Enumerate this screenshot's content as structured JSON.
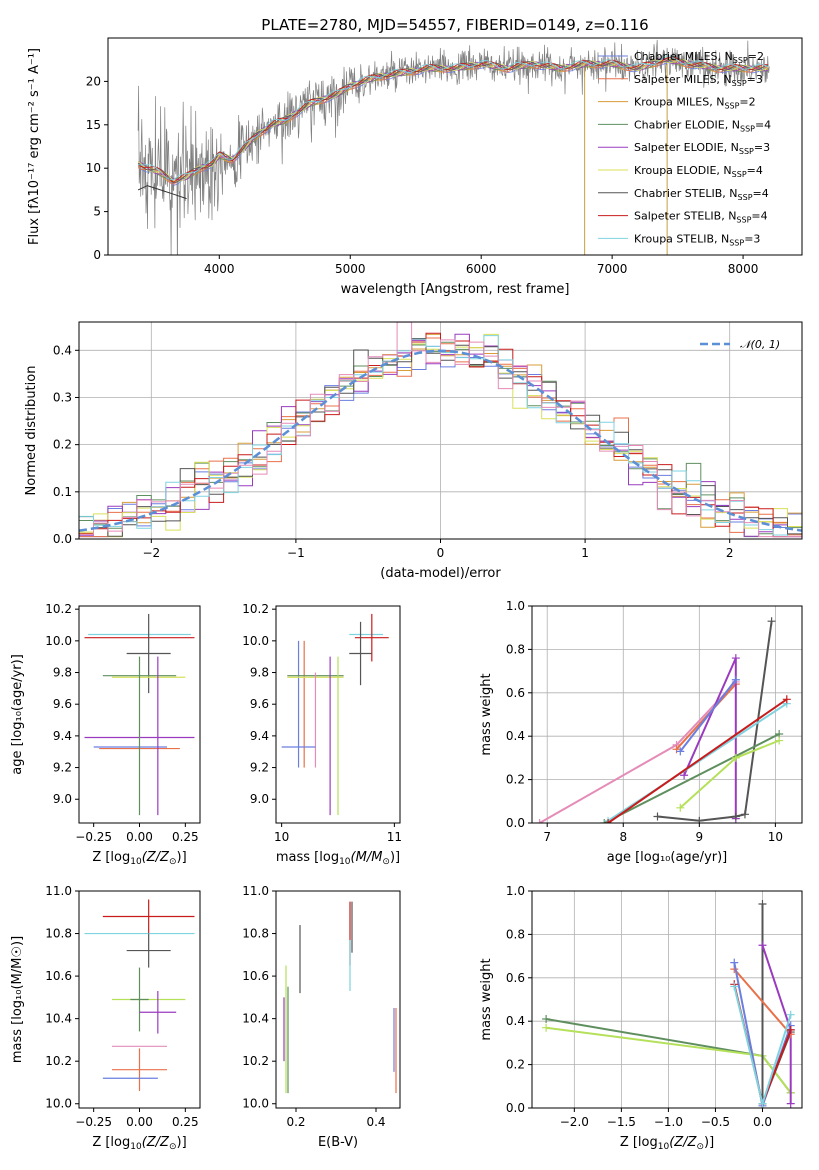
{
  "page": {
    "title": "PLATE=2780, MJD=54557, FIBERID=0149, z=0.116"
  },
  "colors": {
    "chabrier_miles": "#6a7fe0",
    "salpeter_miles": "#e8704a",
    "kroupa_miles": "#d89c3a",
    "chabrier_elodie": "#5f8f5f",
    "salpeter_elodie": "#9a3bbf",
    "kroupa_elodie": "#d8e05a",
    "chabrier_stelib": "#555555",
    "salpeter_stelib": "#c81c1c",
    "kroupa_stelib": "#7fd3e0",
    "pink": "#e58bb8",
    "lime": "#b5e05a",
    "data": "#808080",
    "gaussian": "#5b8fd6"
  },
  "chart_data": [
    {
      "id": "spectrum",
      "type": "line",
      "title": "PLATE=2780, MJD=54557, FIBERID=0149, z=0.116",
      "xlabel": "wavelength [Angstrom, rest frame]",
      "ylabel": "Flux [fλ10⁻¹⁷ erg cm⁻² s⁻¹ A⁻¹]",
      "xlim": [
        3150,
        8450
      ],
      "ylim": [
        0,
        25
      ],
      "xticks": [
        "4000",
        "5000",
        "6000",
        "7000",
        "8000"
      ],
      "yticks": [
        "0",
        "5",
        "10",
        "15",
        "20"
      ],
      "grid": false,
      "legend_position": "top-right",
      "series": [
        {
          "name": "Chabrier MILES, NSSP=2",
          "label_base": "Chabrier MILES, N",
          "label_sub": "SSP",
          "label_tail": "=2",
          "color": "#6a7fe0"
        },
        {
          "name": "Salpeter MILES, NSSP=3",
          "label_base": "Salpeter MILES, N",
          "label_sub": "SSP",
          "label_tail": "=3",
          "color": "#e8704a"
        },
        {
          "name": "Kroupa MILES, NSSP=2",
          "label_base": "Kroupa MILES, N",
          "label_sub": "SSP",
          "label_tail": "=2",
          "color": "#d89c3a"
        },
        {
          "name": "Chabrier ELODIE, NSSP=4",
          "label_base": "Chabrier ELODIE, N",
          "label_sub": "SSP",
          "label_tail": "=4",
          "color": "#5f8f5f"
        },
        {
          "name": "Salpeter ELODIE, NSSP=3",
          "label_base": "Salpeter ELODIE, N",
          "label_sub": "SSP",
          "label_tail": "=3",
          "color": "#9a3bbf"
        },
        {
          "name": "Kroupa ELODIE, NSSP=4",
          "label_base": "Kroupa ELODIE, N",
          "label_sub": "SSP",
          "label_tail": "=4",
          "color": "#d8e05a"
        },
        {
          "name": "Chabrier STELIB, NSSP=4",
          "label_base": "Chabrier STELIB, N",
          "label_sub": "SSP",
          "label_tail": "=4",
          "color": "#555555"
        },
        {
          "name": "Salpeter STELIB, NSSP=4",
          "label_base": "Salpeter STELIB, N",
          "label_sub": "SSP",
          "label_tail": "=4",
          "color": "#c81c1c"
        },
        {
          "name": "Kroupa STELIB, NSSP=3",
          "label_base": "Kroupa STELIB, N",
          "label_sub": "SSP",
          "label_tail": "=3",
          "color": "#7fd3e0"
        }
      ],
      "model_curve": {
        "x": [
          3380,
          3450,
          3550,
          3650,
          3750,
          3850,
          3950,
          4000,
          4100,
          4200,
          4300,
          4400,
          4500,
          4600,
          4700,
          4800,
          4900,
          5000,
          5200,
          5400,
          5600,
          5800,
          6000,
          6200,
          6400,
          6600,
          6800,
          7000,
          7200,
          7400,
          7600,
          7800,
          8000,
          8200
        ],
        "y": [
          10.5,
          10.0,
          9.5,
          8.5,
          9.0,
          10.0,
          10.5,
          11.5,
          11.0,
          12.5,
          14.0,
          15.0,
          15.5,
          16.5,
          17.5,
          18.0,
          18.5,
          19.5,
          20.5,
          21.0,
          21.5,
          21.5,
          22.0,
          21.5,
          22.0,
          21.5,
          22.0,
          22.0,
          21.5,
          22.5,
          22.0,
          21.5,
          21.5,
          21.5
        ]
      },
      "stelib_low_segment": {
        "x": [
          3380,
          3450,
          3550,
          3650,
          3750
        ],
        "y": [
          7.5,
          8.0,
          7.5,
          7.0,
          6.5
        ]
      }
    },
    {
      "id": "residuals",
      "type": "line",
      "xlabel": "(data-model)/error",
      "ylabel": "Normed distribution",
      "xlim": [
        -2.5,
        2.5
      ],
      "ylim": [
        0,
        0.46
      ],
      "xticks": [
        "−2",
        "−1",
        "0",
        "1",
        "2"
      ],
      "yticks": [
        "0.0",
        "0.1",
        "0.2",
        "0.3",
        "0.4"
      ],
      "grid": true,
      "legend_position": "top-right",
      "legend_label": "𝒩(0, 1)",
      "bin_width": 0.1
    },
    {
      "id": "z_age",
      "type": "scatter",
      "xlabel_prefix": "Z [log",
      "xlabel_suffix": "(Z/Z",
      "ylabel": "age  [log₁₀(age/yr)]",
      "xlim": [
        -0.33,
        0.33
      ],
      "ylim": [
        8.85,
        10.22
      ],
      "xticks": [
        "−0.25",
        "0.00",
        "0.25"
      ],
      "yticks": [
        "9.0",
        "9.2",
        "9.4",
        "9.6",
        "9.8",
        "10.0",
        "10.2"
      ],
      "grid": false,
      "points": [
        {
          "x": 0.0,
          "y": 10.04,
          "xerr": 0.28,
          "yerr": 0.0,
          "color": "#7fd3e0"
        },
        {
          "x": 0.0,
          "y": 10.02,
          "xerr": 0.3,
          "yerr": 0.0,
          "color": "#c81c1c"
        },
        {
          "x": 0.05,
          "y": 9.92,
          "xerr": 0.12,
          "yerr": 0.25,
          "color": "#555555"
        },
        {
          "x": 0.0,
          "y": 9.78,
          "xerr": 0.2,
          "yerr": 0.0,
          "color": "#5f8f5f"
        },
        {
          "x": 0.05,
          "y": 9.77,
          "xerr": 0.2,
          "yerr": 0.0,
          "color": "#d8e05a"
        },
        {
          "x": 0.0,
          "y": 9.39,
          "xerr": 0.3,
          "yerr": 0.0,
          "color": "#9a3bbf"
        },
        {
          "x": 0.1,
          "y": 9.39,
          "xerr": 0.0,
          "yerr": 0.0,
          "color": "#9a3bbf"
        },
        {
          "x": -0.05,
          "y": 9.33,
          "xerr": 0.2,
          "yerr": 0.0,
          "color": "#6a7fe0"
        },
        {
          "x": 0.0,
          "y": 9.32,
          "xerr": 0.22,
          "yerr": 0.0,
          "color": "#e8704a"
        },
        {
          "x": 0.0,
          "y": 9.4,
          "xerr": 0.0,
          "yerr": 0.5,
          "color": "#5f8f5f"
        },
        {
          "x": 0.1,
          "y": 9.4,
          "xerr": 0.0,
          "yerr": 0.5,
          "color": "#9a3bbf"
        }
      ]
    },
    {
      "id": "mass_age",
      "type": "scatter",
      "xlabel_prefix": "mass [log",
      "xlabel_suffix": "(M/M",
      "xlim": [
        9.95,
        11.05
      ],
      "ylim": [
        8.85,
        10.22
      ],
      "xticks": [
        "10",
        "11"
      ],
      "yticks": [
        "9.0",
        "9.2",
        "9.4",
        "9.6",
        "9.8",
        "10.0",
        "10.2"
      ],
      "grid": false,
      "points": [
        {
          "x": 10.75,
          "y": 10.04,
          "xerr": 0.15,
          "yerr": 0.0,
          "color": "#7fd3e0"
        },
        {
          "x": 10.8,
          "y": 10.02,
          "xerr": 0.15,
          "yerr": 0.15,
          "color": "#c81c1c"
        },
        {
          "x": 10.7,
          "y": 9.92,
          "xerr": 0.1,
          "yerr": 0.2,
          "color": "#555555"
        },
        {
          "x": 10.15,
          "y": 9.6,
          "xerr": 0.0,
          "yerr": 0.4,
          "color": "#6a7fe0"
        },
        {
          "x": 10.2,
          "y": 9.6,
          "xerr": 0.0,
          "yerr": 0.4,
          "color": "#e8704a"
        },
        {
          "x": 10.3,
          "y": 9.78,
          "xerr": 0.25,
          "yerr": 0.0,
          "color": "#5f8f5f"
        },
        {
          "x": 10.3,
          "y": 9.77,
          "xerr": 0.25,
          "yerr": 0.0,
          "color": "#d8e05a"
        },
        {
          "x": 10.5,
          "y": 9.4,
          "xerr": 0.0,
          "yerr": 0.5,
          "color": "#b5e05a"
        },
        {
          "x": 10.43,
          "y": 9.4,
          "xerr": 0.0,
          "yerr": 0.5,
          "color": "#9a3bbf"
        },
        {
          "x": 10.3,
          "y": 9.5,
          "xerr": 0.0,
          "yerr": 0.3,
          "color": "#e58bb8"
        },
        {
          "x": 10.15,
          "y": 9.33,
          "xerr": 0.15,
          "yerr": 0.0,
          "color": "#6a7fe0"
        }
      ]
    },
    {
      "id": "age_weight",
      "type": "line",
      "xlabel": "age  [log₁₀(age/yr)]",
      "ylabel": "mass weight",
      "xlim": [
        6.8,
        10.35
      ],
      "ylim": [
        0,
        1
      ],
      "xticks": [
        "7",
        "8",
        "9",
        "10"
      ],
      "yticks": [
        "0.0",
        "0.2",
        "0.4",
        "0.6",
        "0.8",
        "1.0"
      ],
      "grid": true,
      "series": [
        {
          "color": "#e58bb8",
          "x": [
            6.9,
            8.7,
            9.48
          ],
          "y": [
            0.0,
            0.36,
            0.65
          ]
        },
        {
          "color": "#e8704a",
          "x": [
            8.7,
            9.48
          ],
          "y": [
            0.34,
            0.64
          ]
        },
        {
          "color": "#9a3bbf",
          "x": [
            8.8,
            9.48,
            9.48
          ],
          "y": [
            0.22,
            0.76,
            0.02
          ]
        },
        {
          "color": "#555555",
          "x": [
            8.45,
            9.0,
            9.48,
            9.6,
            9.95
          ],
          "y": [
            0.03,
            0.01,
            0.03,
            0.04,
            0.93
          ]
        },
        {
          "color": "#5f8f5f",
          "x": [
            7.75,
            10.05
          ],
          "y": [
            0.0,
            0.41
          ]
        },
        {
          "color": "#7fd3e0",
          "x": [
            7.8,
            10.15
          ],
          "y": [
            0.01,
            0.55
          ]
        },
        {
          "color": "#c81c1c",
          "x": [
            7.8,
            10.15
          ],
          "y": [
            0.0,
            0.57
          ]
        },
        {
          "color": "#b5e05a",
          "x": [
            8.75,
            9.48,
            10.05
          ],
          "y": [
            0.07,
            0.3,
            0.38
          ]
        },
        {
          "color": "#6a7fe0",
          "x": [
            8.75,
            9.48
          ],
          "y": [
            0.33,
            0.66
          ]
        }
      ]
    },
    {
      "id": "z_mass",
      "type": "scatter",
      "xlabel_prefix": "Z [log",
      "xlabel_suffix": "(Z/Z",
      "ylabel": "mass [log₁₀(M/M☉)]",
      "xlim": [
        -0.33,
        0.33
      ],
      "ylim": [
        9.98,
        11.0
      ],
      "xticks": [
        "−0.25",
        "0.00",
        "0.25"
      ],
      "yticks": [
        "10.0",
        "10.2",
        "10.4",
        "10.6",
        "10.8",
        "11.0"
      ],
      "grid": false,
      "points": [
        {
          "x": 0.05,
          "y": 10.88,
          "xerr": 0.25,
          "yerr": 0.08,
          "color": "#c81c1c"
        },
        {
          "x": 0.0,
          "y": 10.8,
          "xerr": 0.3,
          "yerr": 0.0,
          "color": "#7fd3e0"
        },
        {
          "x": 0.05,
          "y": 10.72,
          "xerr": 0.12,
          "yerr": 0.08,
          "color": "#555555"
        },
        {
          "x": 0.05,
          "y": 10.49,
          "xerr": 0.2,
          "yerr": 0.0,
          "color": "#b5e05a"
        },
        {
          "x": 0.0,
          "y": 10.49,
          "xerr": 0.05,
          "yerr": 0.15,
          "color": "#5f8f5f"
        },
        {
          "x": 0.1,
          "y": 10.43,
          "xerr": 0.1,
          "yerr": 0.1,
          "color": "#9a3bbf"
        },
        {
          "x": 0.0,
          "y": 10.27,
          "xerr": 0.15,
          "yerr": 0.0,
          "color": "#e58bb8"
        },
        {
          "x": 0.0,
          "y": 10.16,
          "xerr": 0.15,
          "yerr": 0.1,
          "color": "#e8704a"
        },
        {
          "x": -0.05,
          "y": 10.12,
          "xerr": 0.15,
          "yerr": 0.0,
          "color": "#6a7fe0"
        }
      ]
    },
    {
      "id": "ebv_mass",
      "type": "scatter",
      "xlabel": "E(B-V)",
      "xlim": [
        0.15,
        0.46
      ],
      "ylim": [
        9.98,
        11.0
      ],
      "xticks": [
        "0.2",
        "0.4"
      ],
      "yticks": [
        "10.0",
        "10.2",
        "10.4",
        "10.6",
        "10.8",
        "11.0"
      ],
      "grid": false,
      "points": [
        {
          "x": 0.17,
          "y": 10.35,
          "xerr": 0,
          "yerr": 0.15,
          "color": "#9a3bbf"
        },
        {
          "x": 0.175,
          "y": 10.35,
          "xerr": 0,
          "yerr": 0.3,
          "color": "#b5e05a"
        },
        {
          "x": 0.18,
          "y": 10.3,
          "xerr": 0,
          "yerr": 0.25,
          "color": "#5f8f5f"
        },
        {
          "x": 0.21,
          "y": 10.68,
          "xerr": 0,
          "yerr": 0.16,
          "color": "#555555"
        },
        {
          "x": 0.335,
          "y": 10.8,
          "xerr": 0,
          "yerr": 0.15,
          "color": "#c81c1c"
        },
        {
          "x": 0.335,
          "y": 10.65,
          "xerr": 0,
          "yerr": 0.12,
          "color": "#7fd3e0"
        },
        {
          "x": 0.34,
          "y": 10.83,
          "xerr": 0,
          "yerr": 0.12,
          "color": "#555555"
        },
        {
          "x": 0.445,
          "y": 10.3,
          "xerr": 0,
          "yerr": 0.15,
          "color": "#6a7fe0"
        },
        {
          "x": 0.45,
          "y": 10.25,
          "xerr": 0,
          "yerr": 0.2,
          "color": "#e8704a"
        }
      ]
    },
    {
      "id": "z_weight",
      "type": "line",
      "xlabel_prefix": "Z [log",
      "xlabel_suffix": "(Z/Z",
      "ylabel": "mass weight",
      "xlim": [
        -2.45,
        0.42
      ],
      "ylim": [
        0,
        1
      ],
      "xticks": [
        "−2.0",
        "−1.5",
        "−1.0",
        "−0.5",
        "0.0"
      ],
      "yticks": [
        "0.0",
        "0.2",
        "0.4",
        "0.6",
        "0.8",
        "1.0"
      ],
      "grid": true,
      "series": [
        {
          "color": "#5f8f5f",
          "x": [
            -2.3,
            0.0,
            0.3
          ],
          "y": [
            0.41,
            0.24,
            0.07
          ]
        },
        {
          "color": "#b5e05a",
          "x": [
            -2.3,
            0.0,
            0.3
          ],
          "y": [
            0.37,
            0.24,
            0.07
          ]
        },
        {
          "color": "#555555",
          "x": [
            0.0,
            0.0,
            0.3
          ],
          "y": [
            0.94,
            0.02,
            0.35
          ]
        },
        {
          "color": "#9a3bbf",
          "x": [
            0.0,
            0.3,
            0.3
          ],
          "y": [
            0.75,
            0.36,
            0.02
          ]
        },
        {
          "color": "#e8704a",
          "x": [
            -0.3,
            0.3
          ],
          "y": [
            0.64,
            0.34
          ]
        },
        {
          "color": "#6a7fe0",
          "x": [
            -0.3,
            0.0,
            0.3
          ],
          "y": [
            0.67,
            0.01,
            0.38
          ]
        },
        {
          "color": "#c81c1c",
          "x": [
            -0.3,
            0.0,
            0.3
          ],
          "y": [
            0.57,
            0.02,
            0.36
          ]
        },
        {
          "color": "#7fd3e0",
          "x": [
            -0.3,
            0.0,
            0.3
          ],
          "y": [
            0.56,
            0.02,
            0.43
          ]
        }
      ]
    }
  ]
}
